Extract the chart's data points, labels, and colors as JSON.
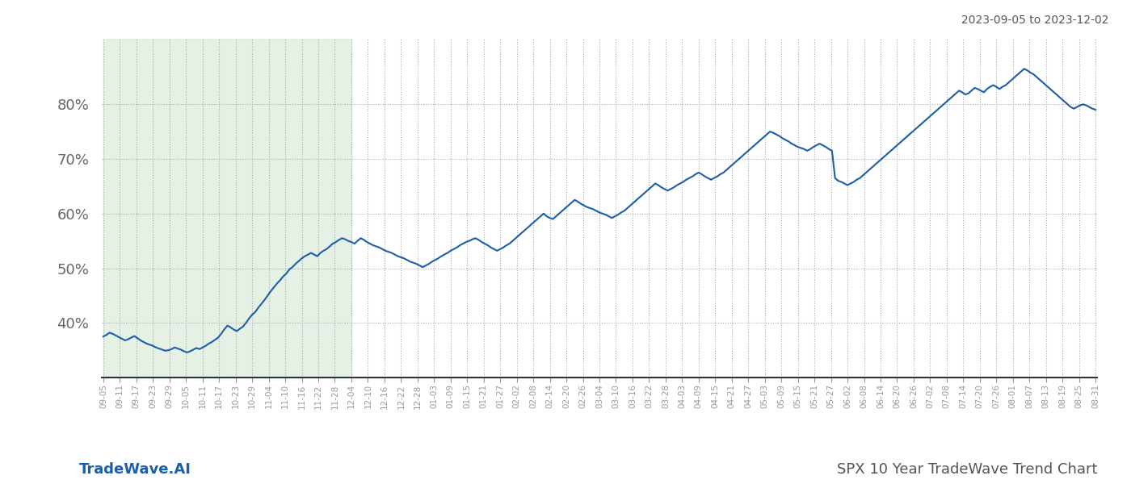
{
  "title_right": "2023-09-05 to 2023-12-02",
  "title_bottom_left": "TradeWave.AI",
  "title_bottom_right": "SPX 10 Year TradeWave Trend Chart",
  "line_color": "#1a5fa8",
  "line_width": 1.5,
  "shaded_region_color": "#d4e8d4",
  "shaded_region_alpha": 0.6,
  "background_color": "#ffffff",
  "grid_color": "#aaaaaa",
  "grid_style": ":",
  "ylim": [
    30,
    92
  ],
  "yticks": [
    40,
    50,
    60,
    70,
    80
  ],
  "figsize": [
    14,
    6
  ],
  "dpi": 100,
  "x_labels": [
    "09-05",
    "09-11",
    "09-17",
    "09-23",
    "09-29",
    "10-05",
    "10-11",
    "10-17",
    "10-23",
    "10-29",
    "11-04",
    "11-10",
    "11-16",
    "11-22",
    "11-28",
    "12-04",
    "12-10",
    "12-16",
    "12-22",
    "12-28",
    "01-03",
    "01-09",
    "01-15",
    "01-21",
    "01-27",
    "02-02",
    "02-08",
    "02-14",
    "02-20",
    "02-26",
    "03-04",
    "03-10",
    "03-16",
    "03-22",
    "03-28",
    "04-03",
    "04-09",
    "04-15",
    "04-21",
    "04-27",
    "05-03",
    "05-09",
    "05-15",
    "05-21",
    "05-27",
    "06-02",
    "06-08",
    "06-14",
    "06-20",
    "06-26",
    "07-02",
    "07-08",
    "07-14",
    "07-20",
    "07-26",
    "08-01",
    "08-07",
    "08-13",
    "08-19",
    "08-25",
    "08-31"
  ],
  "shaded_x_start_label": "09-05",
  "shaded_x_end_label": "12-04",
  "values": [
    37.5,
    37.8,
    38.2,
    38.0,
    37.7,
    37.4,
    37.1,
    36.8,
    37.0,
    37.3,
    37.6,
    37.2,
    36.8,
    36.5,
    36.2,
    36.0,
    35.8,
    35.5,
    35.3,
    35.1,
    34.9,
    35.0,
    35.2,
    35.5,
    35.3,
    35.1,
    34.8,
    34.6,
    34.8,
    35.1,
    35.4,
    35.2,
    35.5,
    35.8,
    36.2,
    36.5,
    36.9,
    37.3,
    38.0,
    38.8,
    39.5,
    39.2,
    38.8,
    38.5,
    38.9,
    39.3,
    40.0,
    40.8,
    41.5,
    42.0,
    42.8,
    43.5,
    44.2,
    45.0,
    45.8,
    46.5,
    47.2,
    47.8,
    48.5,
    49.0,
    49.8,
    50.2,
    50.8,
    51.3,
    51.8,
    52.2,
    52.5,
    52.8,
    52.5,
    52.2,
    52.8,
    53.2,
    53.5,
    54.0,
    54.5,
    54.8,
    55.2,
    55.5,
    55.3,
    55.0,
    54.8,
    54.5,
    55.0,
    55.5,
    55.2,
    54.8,
    54.5,
    54.2,
    54.0,
    53.8,
    53.5,
    53.2,
    53.0,
    52.8,
    52.5,
    52.2,
    52.0,
    51.8,
    51.5,
    51.2,
    51.0,
    50.8,
    50.5,
    50.2,
    50.5,
    50.8,
    51.2,
    51.5,
    51.8,
    52.2,
    52.5,
    52.8,
    53.2,
    53.5,
    53.8,
    54.2,
    54.5,
    54.8,
    55.0,
    55.3,
    55.5,
    55.2,
    54.8,
    54.5,
    54.2,
    53.8,
    53.5,
    53.2,
    53.5,
    53.8,
    54.2,
    54.5,
    55.0,
    55.5,
    56.0,
    56.5,
    57.0,
    57.5,
    58.0,
    58.5,
    59.0,
    59.5,
    60.0,
    59.5,
    59.2,
    59.0,
    59.5,
    60.0,
    60.5,
    61.0,
    61.5,
    62.0,
    62.5,
    62.2,
    61.8,
    61.5,
    61.2,
    61.0,
    60.8,
    60.5,
    60.2,
    60.0,
    59.8,
    59.5,
    59.2,
    59.5,
    59.8,
    60.2,
    60.5,
    61.0,
    61.5,
    62.0,
    62.5,
    63.0,
    63.5,
    64.0,
    64.5,
    65.0,
    65.5,
    65.2,
    64.8,
    64.5,
    64.2,
    64.5,
    64.8,
    65.2,
    65.5,
    65.8,
    66.2,
    66.5,
    66.8,
    67.2,
    67.5,
    67.2,
    66.8,
    66.5,
    66.2,
    66.5,
    66.8,
    67.2,
    67.5,
    68.0,
    68.5,
    69.0,
    69.5,
    70.0,
    70.5,
    71.0,
    71.5,
    72.0,
    72.5,
    73.0,
    73.5,
    74.0,
    74.5,
    75.0,
    74.8,
    74.5,
    74.2,
    73.8,
    73.5,
    73.2,
    72.8,
    72.5,
    72.2,
    72.0,
    71.8,
    71.5,
    71.8,
    72.2,
    72.5,
    72.8,
    72.5,
    72.2,
    71.8,
    71.5,
    66.5,
    66.0,
    65.8,
    65.5,
    65.2,
    65.5,
    65.8,
    66.2,
    66.5,
    67.0,
    67.5,
    68.0,
    68.5,
    69.0,
    69.5,
    70.0,
    70.5,
    71.0,
    71.5,
    72.0,
    72.5,
    73.0,
    73.5,
    74.0,
    74.5,
    75.0,
    75.5,
    76.0,
    76.5,
    77.0,
    77.5,
    78.0,
    78.5,
    79.0,
    79.5,
    80.0,
    80.5,
    81.0,
    81.5,
    82.0,
    82.5,
    82.2,
    81.8,
    82.0,
    82.5,
    83.0,
    82.8,
    82.5,
    82.2,
    82.8,
    83.2,
    83.5,
    83.2,
    82.8,
    83.2,
    83.5,
    84.0,
    84.5,
    85.0,
    85.5,
    86.0,
    86.5,
    86.2,
    85.8,
    85.5,
    85.0,
    84.5,
    84.0,
    83.5,
    83.0,
    82.5,
    82.0,
    81.5,
    81.0,
    80.5,
    80.0,
    79.5,
    79.2,
    79.5,
    79.8,
    80.0,
    79.8,
    79.5,
    79.2,
    79.0
  ]
}
